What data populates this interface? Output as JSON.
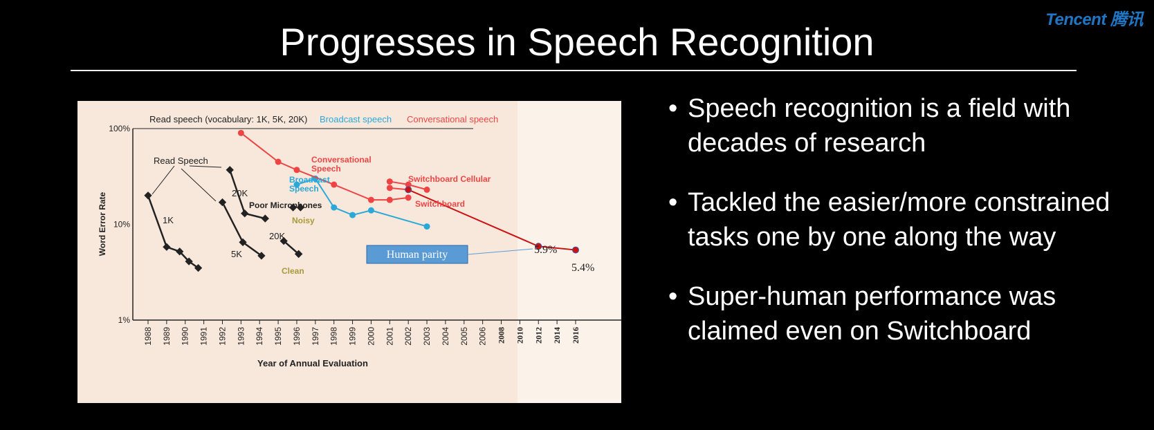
{
  "brand": "Tencent 腾讯",
  "title": "Progresses in Speech Recognition",
  "bullets": [
    "Speech recognition is a field with decades of research",
    "Tackled the easier/more constrained tasks one by one along the way",
    "Super-human performance was claimed even on Switchboard"
  ],
  "chart_data": {
    "type": "line",
    "title": "",
    "xlabel": "Year of Annual Evaluation",
    "ylabel": "Word Error Rate",
    "y_scale": "log",
    "ylim": [
      1,
      100
    ],
    "y_ticks": [
      "1%",
      "10%",
      "100%"
    ],
    "x_ticks": [
      "1988",
      "1989",
      "1990",
      "1991",
      "1992",
      "1993",
      "1994",
      "1995",
      "1996",
      "1997",
      "1998",
      "1999",
      "2000",
      "2001",
      "2002",
      "2003",
      "2004",
      "2005",
      "2006",
      "2008",
      "2010",
      "2012",
      "2014",
      "2016"
    ],
    "legend": [
      {
        "label": "Read speech (vocabulary: 1K, 5K, 20K)",
        "color": "#222222"
      },
      {
        "label": "Broadcast speech",
        "color": "#2aa8d8"
      },
      {
        "label": "Conversational speech",
        "color": "#ee4444"
      }
    ],
    "series": [
      {
        "name": "1K",
        "group": "read",
        "color": "#222222",
        "x": [
          1988,
          1989,
          1989.7,
          1990.2,
          1990.7
        ],
        "y": [
          20,
          5.8,
          5.2,
          4.1,
          3.5
        ]
      },
      {
        "name": "5K",
        "group": "read",
        "color": "#222222",
        "x": [
          1992,
          1993.1,
          1994.1
        ],
        "y": [
          17,
          6.5,
          4.7
        ]
      },
      {
        "name": "20K",
        "group": "read",
        "color": "#222222",
        "x": [
          1992.4,
          1993.2,
          1994.3
        ],
        "y": [
          37,
          13,
          11.5
        ]
      },
      {
        "name": "Poor Microphones",
        "group": "read",
        "color": "#222222",
        "x": [
          1995.8
        ],
        "y": [
          15
        ]
      },
      {
        "name": "Noisy",
        "group": "read",
        "color": "#222222",
        "x": [
          1996.2
        ],
        "y": [
          15
        ]
      },
      {
        "name": "20K",
        "group": "read",
        "color": "#222222",
        "x": [
          1995.3,
          1996.1
        ],
        "y": [
          6.7,
          4.9
        ]
      },
      {
        "name": "Clean",
        "group": "read",
        "color": "#222222",
        "x": [
          1996.1
        ],
        "y": [
          4.9
        ]
      },
      {
        "name": "Broadcast Speech",
        "group": "broadcast",
        "color": "#2aa8d8",
        "x": [
          1996,
          1997,
          1998,
          1999,
          2000,
          2003
        ],
        "y": [
          26,
          30,
          15,
          12.5,
          14,
          9.5
        ]
      },
      {
        "name": "Conversational Speech",
        "group": "conversational",
        "color": "#ee4444",
        "x": [
          1993,
          1995,
          1996,
          1998,
          2000,
          2001,
          2002
        ],
        "y": [
          90,
          45,
          37,
          26,
          18,
          18,
          19
        ]
      },
      {
        "name": "Switchboard Cellular",
        "group": "conversational",
        "color": "#ee4444",
        "x": [
          2001,
          2002,
          2003
        ],
        "y": [
          28,
          26,
          23
        ]
      },
      {
        "name": "Switchboard",
        "group": "conversational",
        "color": "#ee4444",
        "x": [
          2001,
          2002
        ],
        "y": [
          24,
          23
        ]
      },
      {
        "name": "Switchboard (recent)",
        "group": "conversational",
        "color": "#cc1111",
        "x": [
          2002,
          2012,
          2016
        ],
        "y": [
          23,
          5.9,
          5.4
        ]
      }
    ],
    "series_labels": {
      "read_speech": "Read Speech",
      "k1": "1K",
      "k5": "5K",
      "k20_a": "20K",
      "k20_b": "20K",
      "poor_mic": "Poor Microphones",
      "noisy": "Noisy",
      "clean": "Clean",
      "broadcast": "Broadcast Speech",
      "conversational": "Conversational Speech",
      "swb_cell": "Switchboard Cellular",
      "swb": "Switchboard"
    },
    "annotations": {
      "human_parity": "Human parity",
      "val_2012": "5.9%",
      "val_2016": "5.4%"
    }
  }
}
